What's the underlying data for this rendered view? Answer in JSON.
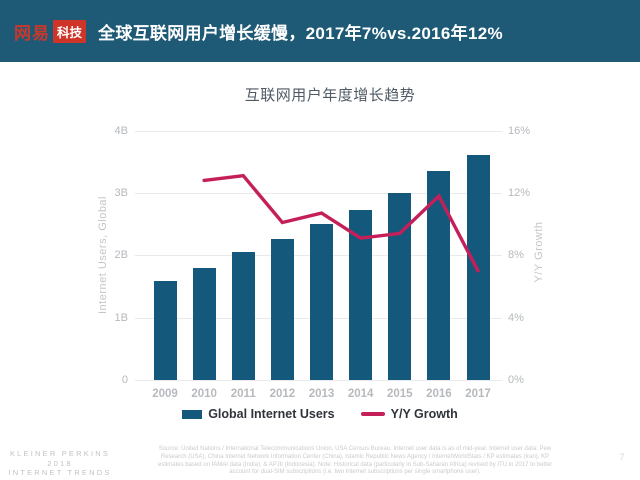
{
  "header": {
    "logo_text_1": "网易",
    "logo_text_2": "科技",
    "title": "全球互联网用户增长缓慢，2017年7%vs.2016年12%"
  },
  "chart_data": {
    "type": "combo",
    "title": "互联网用户年度增长趋势",
    "categories": [
      "2009",
      "2010",
      "2011",
      "2012",
      "2013",
      "2014",
      "2015",
      "2016",
      "2017"
    ],
    "series": [
      {
        "name": "Global Internet Users",
        "type": "bar",
        "axis": "left",
        "unit": "billions",
        "values": [
          1.59,
          1.8,
          2.05,
          2.26,
          2.5,
          2.73,
          3.0,
          3.35,
          3.6
        ]
      },
      {
        "name": "Y/Y Growth",
        "type": "line",
        "axis": "right",
        "unit": "percent",
        "values": [
          null,
          12.8,
          13.1,
          10.1,
          10.7,
          9.1,
          9.4,
          11.8,
          7.0
        ]
      }
    ],
    "left_axis": {
      "label": "Internet Users, Global",
      "range": [
        0,
        4
      ],
      "ticks": [
        "0",
        "1B",
        "2B",
        "3B",
        "4B"
      ]
    },
    "right_axis": {
      "label": "Y/Y Growth",
      "range": [
        0,
        16
      ],
      "ticks": [
        "0%",
        "4%",
        "8%",
        "12%",
        "16%"
      ]
    },
    "grid": true,
    "legend_position": "bottom"
  },
  "footer": {
    "brand_line1": "KLEINER PERKINS",
    "brand_line2": "2018",
    "brand_line3": "INTERNET TRENDS",
    "source_text": "Source: United Nations / International Telecommunications Union, USA Census Bureau. Internet user data is as of mid-year. Internet user data: Pew Research (USA), China Internet Network Information Center (China), Islamic Republic News Agency / InternetWorldStats / KP estimates (Iran), KP estimates based on IAMAI data (India), & APJII (Indonesia). Note: Historical data (particularly in Sub-Saharan Africa) revised by ITU in 2017 to better account for dual-SIM subscriptions (i.e. two Internet subscriptions per single smartphone user).",
    "page_number": "7"
  },
  "colors": {
    "header_bg": "#1e5a76",
    "logo_red": "#cf3428",
    "bar": "#14597c",
    "line": "#c51f5a",
    "grid": "#e9eaec",
    "tick_text": "#b5b8bc",
    "legend_text": "#30343a"
  }
}
